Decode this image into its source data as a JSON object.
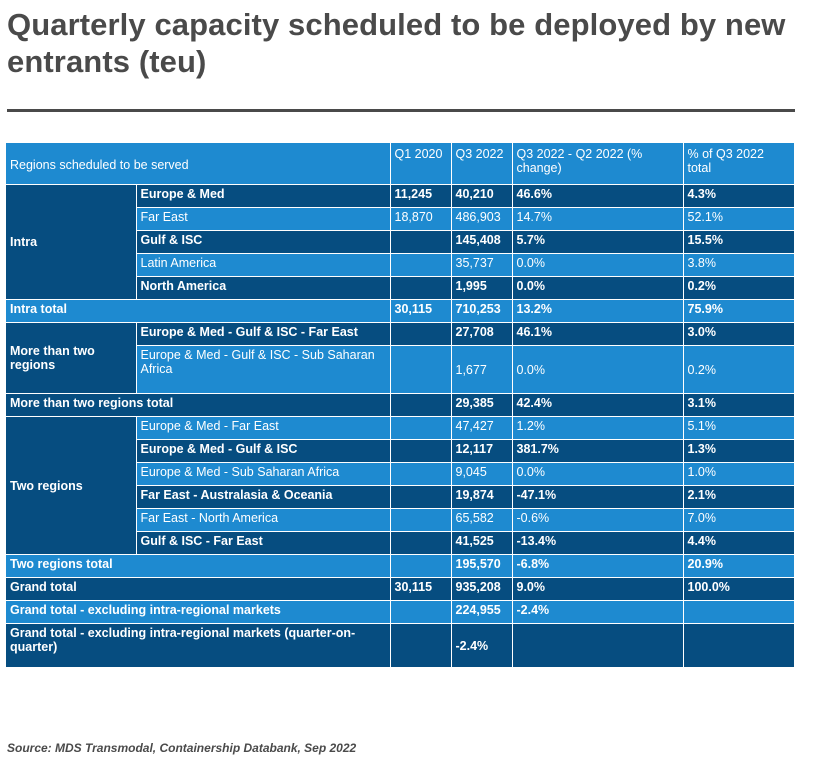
{
  "title": "Quarterly capacity scheduled to be deployed by new entrants (teu)",
  "source": "Source: MDS Transmodal, Containership Databank, Sep 2022",
  "chart_data": {
    "type": "table",
    "columns": [
      "Regions scheduled to be served",
      "Q1 2020",
      "Q3 2022",
      "Q3 2022 - Q2 2022 (% change)",
      "% of Q3 2022 total"
    ],
    "groups": {
      "intra": "Intra",
      "more_than_two": "More than two regions",
      "two": "Two regions"
    },
    "rows": [
      {
        "region": "Europe & Med",
        "q1": "11,245",
        "q3": "40,210",
        "chg": "46.6%",
        "pct": "4.3%"
      },
      {
        "region": "Far East",
        "q1": "18,870",
        "q3": "486,903",
        "chg": "14.7%",
        "pct": "52.1%"
      },
      {
        "region": "Gulf & ISC",
        "q1": "",
        "q3": "145,408",
        "chg": "5.7%",
        "pct": "15.5%"
      },
      {
        "region": "Latin America",
        "q1": "",
        "q3": "35,737",
        "chg": "0.0%",
        "pct": "3.8%"
      },
      {
        "region": "North America",
        "q1": "",
        "q3": "1,995",
        "chg": "0.0%",
        "pct": "0.2%"
      },
      {
        "region": "Intra total",
        "q1": "30,115",
        "q3": "710,253",
        "chg": "13.2%",
        "pct": "75.9%"
      },
      {
        "region": "Europe & Med - Gulf & ISC - Far East",
        "q1": "",
        "q3": "27,708",
        "chg": "46.1%",
        "pct": "3.0%"
      },
      {
        "region": "Europe & Med - Gulf & ISC - Sub Saharan Africa",
        "q1": "",
        "q3": "1,677",
        "chg": "0.0%",
        "pct": "0.2%"
      },
      {
        "region": "More than two regions total",
        "q1": "",
        "q3": "29,385",
        "chg": "42.4%",
        "pct": "3.1%"
      },
      {
        "region": "Europe & Med - Far East",
        "q1": "",
        "q3": "47,427",
        "chg": "1.2%",
        "pct": "5.1%"
      },
      {
        "region": "Europe & Med - Gulf & ISC",
        "q1": "",
        "q3": "12,117",
        "chg": "381.7%",
        "pct": "1.3%"
      },
      {
        "region": "Europe & Med - Sub Saharan Africa",
        "q1": "",
        "q3": "9,045",
        "chg": "0.0%",
        "pct": "1.0%"
      },
      {
        "region": "Far East - Australasia & Oceania",
        "q1": "",
        "q3": "19,874",
        "chg": "-47.1%",
        "pct": "2.1%"
      },
      {
        "region": "Far East - North America",
        "q1": "",
        "q3": "65,582",
        "chg": "-0.6%",
        "pct": "7.0%"
      },
      {
        "region": "Gulf & ISC - Far East",
        "q1": "",
        "q3": "41,525",
        "chg": "-13.4%",
        "pct": "4.4%"
      },
      {
        "region": "Two regions total",
        "q1": "",
        "q3": "195,570",
        "chg": "-6.8%",
        "pct": "20.9%"
      },
      {
        "region": "Grand total",
        "q1": "30,115",
        "q3": "935,208",
        "chg": "9.0%",
        "pct": "100.0%"
      },
      {
        "region": "Grand total - excluding intra-regional markets",
        "q1": "",
        "q3": "224,955",
        "chg": "-2.4%",
        "pct": ""
      },
      {
        "region": "Grand total - excluding intra-regional markets (quarter-on-quarter)",
        "q1": "",
        "q3": "-2.4%",
        "chg": "",
        "pct": ""
      }
    ]
  }
}
